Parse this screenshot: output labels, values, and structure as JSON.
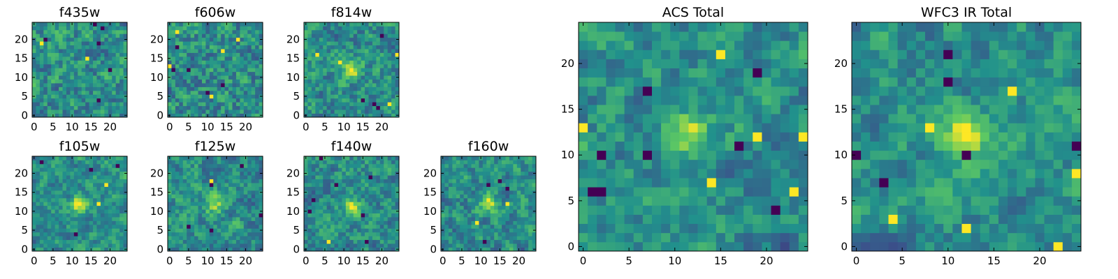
{
  "chart_data": [
    {
      "type": "heatmap",
      "title": "f435w",
      "xticks": [
        0,
        5,
        10,
        15,
        20
      ],
      "yticks": [
        0,
        5,
        10,
        15,
        20
      ],
      "grid_size": 25,
      "peak": [
        13,
        8
      ],
      "peak_strength": 0.0,
      "seed": 11,
      "noise": 0.55,
      "outliers": 8
    },
    {
      "type": "heatmap",
      "title": "f606w",
      "xticks": [
        0,
        5,
        10,
        15,
        20
      ],
      "yticks": [
        0,
        5,
        10,
        15,
        20
      ],
      "grid_size": 25,
      "peak": [
        12,
        12
      ],
      "peak_strength": 0.05,
      "seed": 23,
      "noise": 0.6,
      "outliers": 10
    },
    {
      "type": "heatmap",
      "title": "f814w",
      "xticks": [
        0,
        5,
        10,
        15,
        20
      ],
      "yticks": [
        0,
        5,
        10,
        15,
        20
      ],
      "grid_size": 25,
      "peak": [
        12,
        12
      ],
      "peak_strength": 0.45,
      "seed": 37,
      "noise": 0.5,
      "outliers": 8
    },
    {
      "type": "heatmap",
      "title": "f105w",
      "xticks": [
        0,
        5,
        10,
        15,
        20
      ],
      "yticks": [
        0,
        5,
        10,
        15,
        20
      ],
      "grid_size": 25,
      "peak": [
        12,
        12
      ],
      "peak_strength": 0.45,
      "seed": 41,
      "noise": 0.4,
      "outliers": 6
    },
    {
      "type": "heatmap",
      "title": "f125w",
      "xticks": [
        0,
        5,
        10,
        15,
        20
      ],
      "yticks": [
        0,
        5,
        10,
        15,
        20
      ],
      "grid_size": 25,
      "peak": [
        12,
        12
      ],
      "peak_strength": 0.35,
      "seed": 53,
      "noise": 0.45,
      "outliers": 6
    },
    {
      "type": "heatmap",
      "title": "f140w",
      "xticks": [
        0,
        5,
        10,
        15,
        20
      ],
      "yticks": [
        0,
        5,
        10,
        15,
        20
      ],
      "grid_size": 25,
      "peak": [
        12,
        11
      ],
      "peak_strength": 0.35,
      "seed": 67,
      "noise": 0.45,
      "outliers": 8
    },
    {
      "type": "heatmap",
      "title": "f160w",
      "xticks": [
        0,
        5,
        10,
        15,
        20
      ],
      "yticks": [
        0,
        5,
        10,
        15,
        20
      ],
      "grid_size": 25,
      "peak": [
        12,
        12
      ],
      "peak_strength": 0.4,
      "seed": 79,
      "noise": 0.45,
      "outliers": 6
    },
    {
      "type": "heatmap",
      "title": "ACS Total",
      "xticks": [
        0,
        5,
        10,
        15,
        20
      ],
      "yticks": [
        0,
        5,
        10,
        15,
        20
      ],
      "grid_size": 25,
      "peak": [
        12,
        12
      ],
      "peak_strength": 0.45,
      "seed": 83,
      "noise": 0.4,
      "outliers": 14
    },
    {
      "type": "heatmap",
      "title": "WFC3 IR Total",
      "xticks": [
        0,
        5,
        10,
        15,
        20
      ],
      "yticks": [
        0,
        5,
        10,
        15,
        20
      ],
      "grid_size": 25,
      "peak": [
        12,
        12
      ],
      "peak_strength": 0.5,
      "seed": 97,
      "noise": 0.35,
      "outliers": 12
    }
  ],
  "colormap": [
    "#440154",
    "#3b528b",
    "#21918c",
    "#5ec962",
    "#fde725"
  ]
}
